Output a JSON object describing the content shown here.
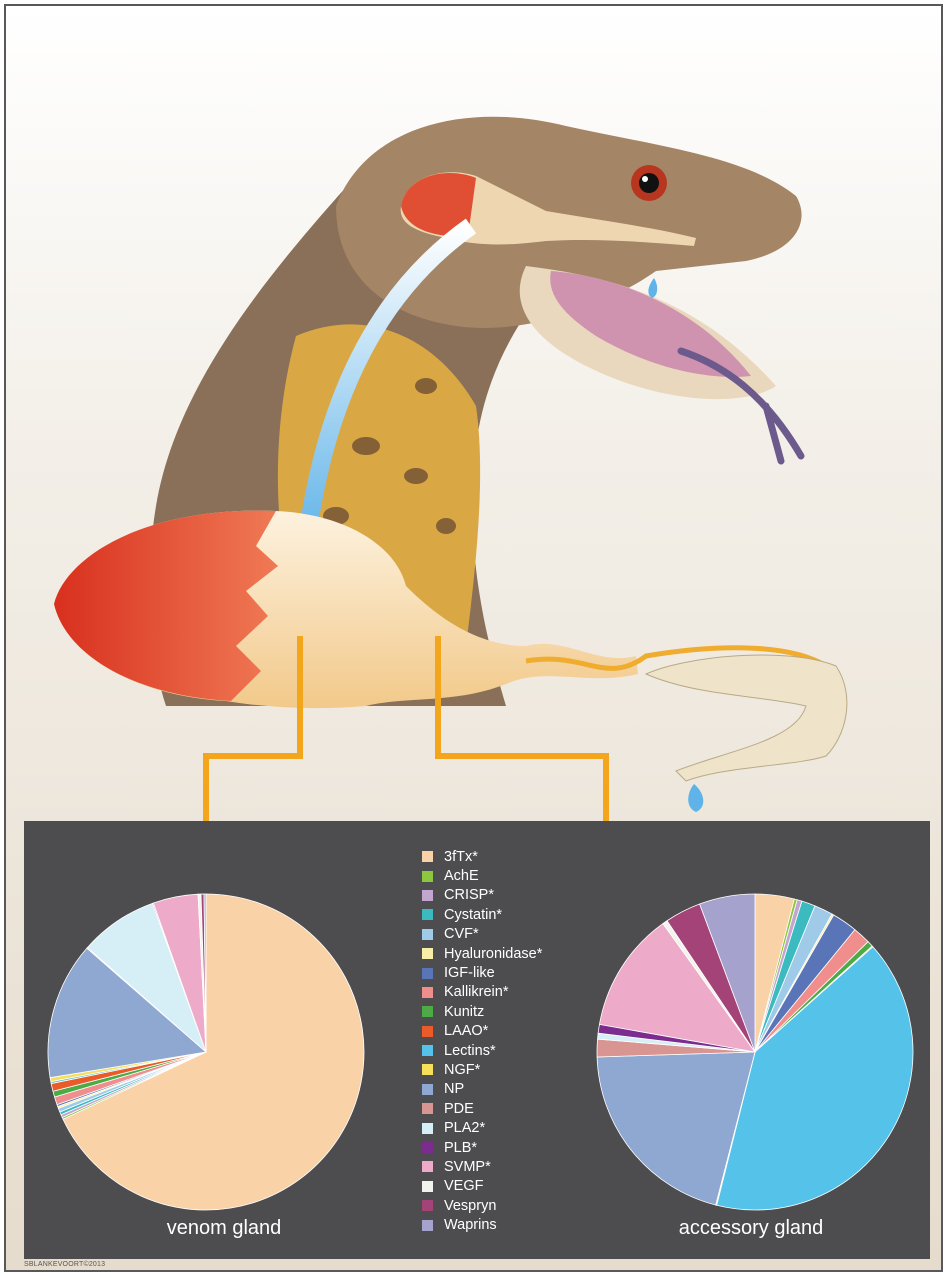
{
  "chart_data": [
    {
      "type": "pie",
      "title": "venom gland",
      "start": "top, clockwise",
      "slices": [
        {
          "label": "3fTx*",
          "value": 68.0
        },
        {
          "label": "AchE",
          "value": 0.2
        },
        {
          "label": "CRISP*",
          "value": 0.3
        },
        {
          "label": "Cystatin*",
          "value": 0.3
        },
        {
          "label": "CVF*",
          "value": 0.4
        },
        {
          "label": "Hyaluronidase*",
          "value": 0.2
        },
        {
          "label": "IGF-like",
          "value": 0.2
        },
        {
          "label": "Kallikrein*",
          "value": 0.8
        },
        {
          "label": "Kunitz",
          "value": 0.6
        },
        {
          "label": "LAAO*",
          "value": 0.8
        },
        {
          "label": "Lectins*",
          "value": 0.2
        },
        {
          "label": "NGF*",
          "value": 0.4
        },
        {
          "label": "NP",
          "value": 14.0
        },
        {
          "label": "PDE",
          "value": 0.1
        },
        {
          "label": "PLA2*",
          "value": 8.0
        },
        {
          "label": "PLB*",
          "value": 0.1
        },
        {
          "label": "SVMP*",
          "value": 4.6
        },
        {
          "label": "VEGF",
          "value": 0.3
        },
        {
          "label": "Vespryn",
          "value": 0.3
        },
        {
          "label": "Waprins",
          "value": 0.2
        }
      ]
    },
    {
      "type": "pie",
      "title": "accessory gland",
      "start": "top, clockwise",
      "slices": [
        {
          "label": "3fTx*",
          "value": 4.0
        },
        {
          "label": "AchE",
          "value": 0.3
        },
        {
          "label": "CRISP*",
          "value": 0.5
        },
        {
          "label": "Cystatin*",
          "value": 1.4
        },
        {
          "label": "CVF*",
          "value": 1.9
        },
        {
          "label": "Hyaluronidase*",
          "value": 0.2
        },
        {
          "label": "IGF-like",
          "value": 2.6
        },
        {
          "label": "Kallikrein*",
          "value": 1.8
        },
        {
          "label": "Kunitz",
          "value": 0.6
        },
        {
          "label": "LAAO*",
          "value": 0.1
        },
        {
          "label": "Lectins*",
          "value": 40.5
        },
        {
          "label": "NGF*",
          "value": 0.1
        },
        {
          "label": "NP",
          "value": 20.5
        },
        {
          "label": "PDE",
          "value": 1.8
        },
        {
          "label": "PLA2*",
          "value": 0.6
        },
        {
          "label": "PLB*",
          "value": 0.9
        },
        {
          "label": "SVMP*",
          "value": 12.3
        },
        {
          "label": "VEGF",
          "value": 0.5
        },
        {
          "label": "Vespryn",
          "value": 3.7
        },
        {
          "label": "Waprins",
          "value": 5.7
        }
      ]
    }
  ],
  "legend": [
    {
      "label": "3fTx*",
      "color": "#f9d2a8"
    },
    {
      "label": "AchE",
      "color": "#8dc63f"
    },
    {
      "label": "CRISP*",
      "color": "#c3a6cf"
    },
    {
      "label": "Cystatin*",
      "color": "#3bbbc0"
    },
    {
      "label": "CVF*",
      "color": "#9fcbe9"
    },
    {
      "label": "Hyaluronidase*",
      "color": "#f7eea7"
    },
    {
      "label": "IGF-like",
      "color": "#5a74b8"
    },
    {
      "label": "Kallikrein*",
      "color": "#ef8e8c"
    },
    {
      "label": "Kunitz",
      "color": "#4dab46"
    },
    {
      "label": "LAAO*",
      "color": "#ea5b2a"
    },
    {
      "label": "Lectins*",
      "color": "#55c2ea"
    },
    {
      "label": "NGF*",
      "color": "#f6e05a"
    },
    {
      "label": "NP",
      "color": "#8ea8d2"
    },
    {
      "label": "PDE",
      "color": "#d99592"
    },
    {
      "label": "PLA2*",
      "color": "#d6eef6"
    },
    {
      "label": "PLB*",
      "color": "#7b2c8e"
    },
    {
      "label": "SVMP*",
      "color": "#eeaac9"
    },
    {
      "label": "VEGF",
      "color": "#f3f3ee"
    },
    {
      "label": "Vespryn",
      "color": "#a44378"
    },
    {
      "label": "Waprins",
      "color": "#a6a2ce"
    }
  ],
  "credit": "SBLANKEVOORT©2013"
}
